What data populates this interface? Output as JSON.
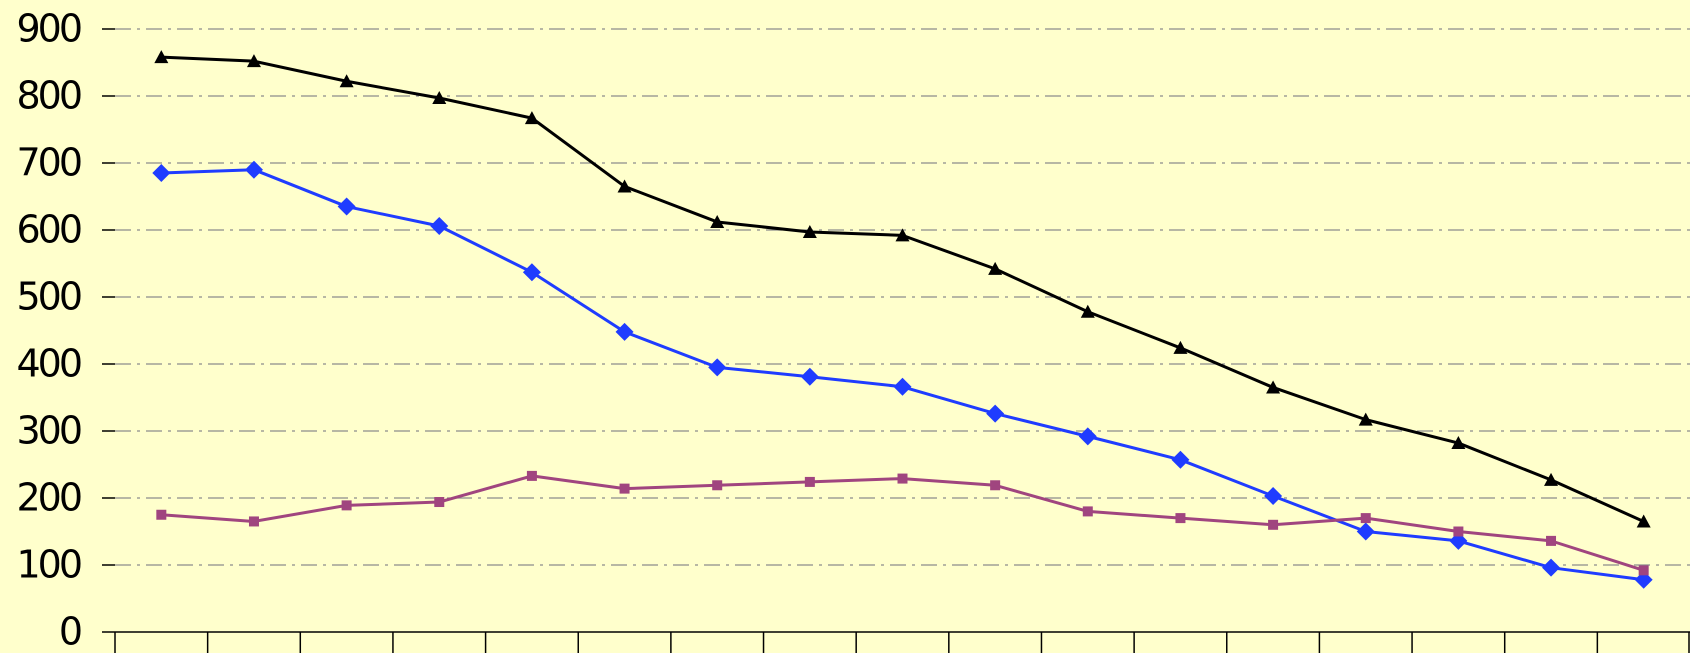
{
  "chart_data": {
    "type": "line",
    "categories": [
      null,
      null,
      null,
      null,
      null,
      null,
      null,
      null,
      null,
      null,
      null,
      null,
      null,
      null,
      null,
      null,
      null
    ],
    "series": [
      {
        "color": "#000000",
        "marker": "triangle",
        "values": [
          858,
          852,
          822,
          797,
          767,
          665,
          612,
          597,
          592,
          542,
          478,
          424,
          365,
          317,
          282,
          227,
          165
        ]
      },
      {
        "color": "#1f3cff",
        "marker": "diamond",
        "values": [
          685,
          690,
          635,
          606,
          537,
          448,
          395,
          381,
          366,
          326,
          292,
          257,
          203,
          150,
          136,
          96,
          78
        ]
      },
      {
        "color": "#a0457f",
        "marker": "square",
        "values": [
          175,
          165,
          189,
          194,
          233,
          214,
          219,
          224,
          229,
          219,
          180,
          170,
          160,
          170,
          150,
          136,
          92
        ]
      }
    ],
    "ylim": [
      0,
      900
    ],
    "yticks": [
      0,
      100,
      200,
      300,
      400,
      500,
      600,
      700,
      800,
      900
    ],
    "grid": true
  }
}
